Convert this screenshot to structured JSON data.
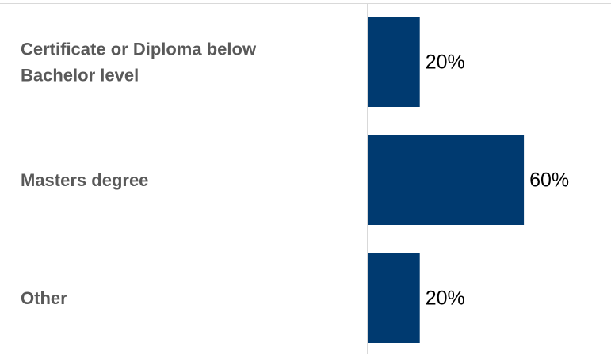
{
  "chart_data": {
    "type": "bar",
    "orientation": "horizontal",
    "title": "",
    "xlabel": "",
    "ylabel": "",
    "categories": [
      [
        "Certificate or Diploma below",
        "Bachelor level"
      ],
      [
        "Masters degree"
      ],
      [
        "Other"
      ]
    ],
    "values": [
      20,
      60,
      20
    ],
    "value_labels": [
      "20%",
      "60%",
      "20%"
    ],
    "unit": "%",
    "xlim": [
      0,
      100
    ],
    "grid": false,
    "legend": "none",
    "colors": {
      "bar": "#003a70",
      "category_text": "#595959",
      "value_text": "#000000",
      "axis": "#d9d9d9"
    }
  }
}
